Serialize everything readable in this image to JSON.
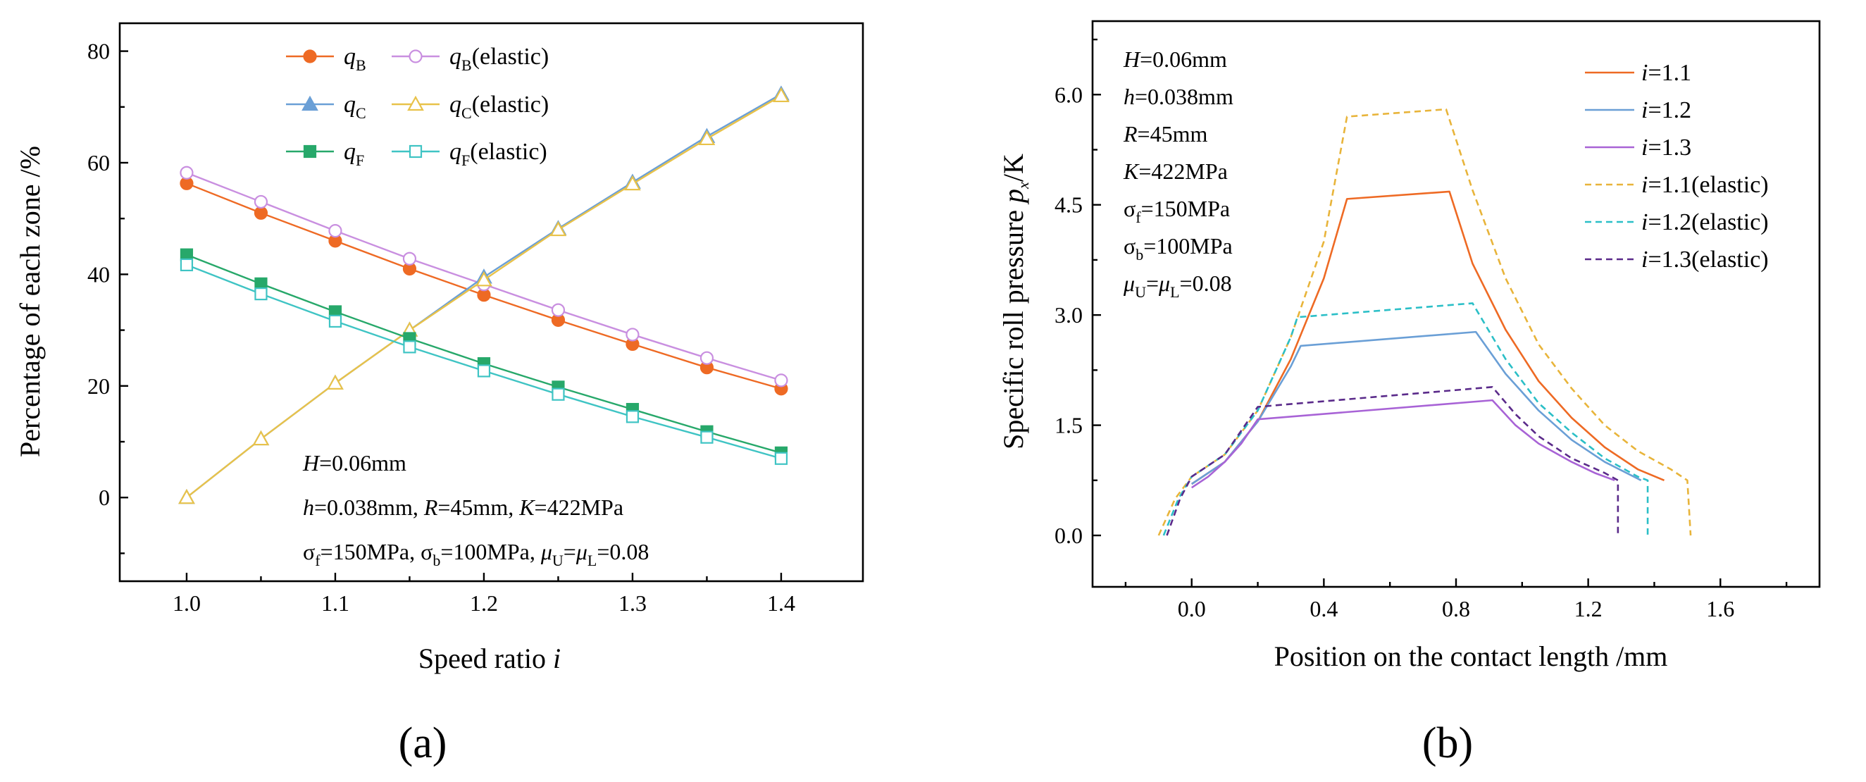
{
  "chart_data": [
    {
      "id": "a",
      "type": "line",
      "panel_label": "(a)",
      "xlabel": "Speed ratio",
      "xlabel_var": "i",
      "ylabel": "Percentage of each zone /%",
      "xlim": [
        0.955,
        1.455
      ],
      "ylim": [
        -15,
        85
      ],
      "xticks": [
        1.0,
        1.1,
        1.2,
        1.3,
        1.4
      ],
      "xtick_labels": [
        "1.0",
        "1.1",
        "1.2",
        "1.3",
        "1.4"
      ],
      "yticks": [
        0,
        20,
        40,
        60,
        80
      ],
      "ytick_labels": [
        "0",
        "20",
        "40",
        "60",
        "80"
      ],
      "x": [
        1.0,
        1.05,
        1.1,
        1.15,
        1.2,
        1.25,
        1.3,
        1.35,
        1.4
      ],
      "series": [
        {
          "name": "q_B",
          "label_main": "q",
          "label_sub": "B",
          "label_suffix": "",
          "color": "#EE6A24",
          "marker": "circle",
          "filled": true,
          "values": [
            56.3,
            51.0,
            46.0,
            41.0,
            36.3,
            31.8,
            27.5,
            23.3,
            19.5
          ]
        },
        {
          "name": "q_B(elastic)",
          "label_main": "q",
          "label_sub": "B",
          "label_suffix": "(elastic)",
          "color": "#C98FE0",
          "marker": "circle",
          "filled": false,
          "values": [
            58.2,
            53.0,
            47.8,
            42.8,
            38.2,
            33.6,
            29.2,
            25.0,
            21.0
          ]
        },
        {
          "name": "q_C",
          "label_main": "q",
          "label_sub": "C",
          "label_suffix": "",
          "color": "#6A9FD6",
          "marker": "triangle",
          "filled": true,
          "values": [
            0.0,
            10.5,
            20.5,
            30.0,
            39.5,
            48.2,
            56.5,
            64.7,
            72.3
          ]
        },
        {
          "name": "q_C(elastic)",
          "label_main": "q",
          "label_sub": "C",
          "label_suffix": "(elastic)",
          "color": "#E8C24A",
          "marker": "triangle",
          "filled": false,
          "values": [
            0.0,
            10.5,
            20.5,
            30.0,
            39.0,
            48.0,
            56.2,
            64.3,
            72.0
          ]
        },
        {
          "name": "q_F",
          "label_main": "q",
          "label_sub": "F",
          "label_suffix": "",
          "color": "#27A86A",
          "marker": "square",
          "filled": true,
          "values": [
            43.5,
            38.3,
            33.3,
            28.5,
            24.0,
            19.8,
            15.8,
            11.8,
            8.0
          ]
        },
        {
          "name": "q_F(elastic)",
          "label_main": "q",
          "label_sub": "F",
          "label_suffix": "(elastic)",
          "color": "#3FC4C4",
          "marker": "square",
          "filled": false,
          "values": [
            41.7,
            36.5,
            31.6,
            27.0,
            22.7,
            18.5,
            14.5,
            10.8,
            7.0
          ]
        }
      ],
      "annotations": [
        {
          "parts": [
            {
              "t": "H",
              "s": "it"
            },
            {
              "t": "=0.06mm",
              "s": ""
            }
          ]
        },
        {
          "parts": [
            {
              "t": "h",
              "s": "it"
            },
            {
              "t": "=0.038mm, ",
              "s": ""
            },
            {
              "t": "R",
              "s": "it"
            },
            {
              "t": "=45mm, ",
              "s": ""
            },
            {
              "t": "K",
              "s": "it"
            },
            {
              "t": "=422MPa",
              "s": ""
            }
          ]
        },
        {
          "parts": [
            {
              "t": "σ",
              "s": ""
            },
            {
              "t": "f",
              "s": "sub"
            },
            {
              "t": "=150MPa, ",
              "s": ""
            },
            {
              "t": "σ",
              "s": ""
            },
            {
              "t": "b",
              "s": "sub"
            },
            {
              "t": "=100MPa, ",
              "s": ""
            },
            {
              "t": "μ",
              "s": "it"
            },
            {
              "t": "U",
              "s": "sub"
            },
            {
              "t": "=",
              "s": ""
            },
            {
              "t": "μ",
              "s": "it"
            },
            {
              "t": "L",
              "s": "sub"
            },
            {
              "t": "=0.08",
              "s": ""
            }
          ]
        }
      ]
    },
    {
      "id": "b",
      "type": "line",
      "panel_label": "(b)",
      "xlabel": "Position on the contact length /mm",
      "ylabel": "Specific roll pressure",
      "ylabel_suffix": "/K",
      "ylabel_var": "p",
      "ylabel_var_sub": "x",
      "xlim": [
        -0.3,
        1.9
      ],
      "ylim": [
        -0.7,
        7.0
      ],
      "xticks": [
        0.0,
        0.4,
        0.8,
        1.2,
        1.6
      ],
      "xtick_labels": [
        "0.0",
        "0.4",
        "0.8",
        "1.2",
        "1.6"
      ],
      "yticks": [
        0.0,
        1.5,
        3.0,
        4.5,
        6.0
      ],
      "ytick_labels": [
        "0.0",
        "1.5",
        "3.0",
        "4.5",
        "6.0"
      ],
      "series": [
        {
          "name": "i=1.1",
          "label_var": "i",
          "label_rest": "=1.1",
          "color": "#EE6A24",
          "dashed": false,
          "x": [
            0.0,
            0.1,
            0.2,
            0.3,
            0.4,
            0.47,
            0.78,
            0.85,
            0.95,
            1.05,
            1.15,
            1.25,
            1.35,
            1.43
          ],
          "y": [
            0.7,
            1.0,
            1.55,
            2.4,
            3.5,
            4.58,
            4.68,
            3.7,
            2.8,
            2.1,
            1.6,
            1.2,
            0.9,
            0.75
          ]
        },
        {
          "name": "i=1.2",
          "label_var": "i",
          "label_rest": "=1.2",
          "color": "#6A9FD6",
          "dashed": false,
          "x": [
            0.0,
            0.1,
            0.2,
            0.3,
            0.33,
            0.86,
            0.95,
            1.05,
            1.15,
            1.25,
            1.36
          ],
          "y": [
            0.7,
            1.0,
            1.55,
            2.3,
            2.58,
            2.77,
            2.2,
            1.7,
            1.3,
            1.0,
            0.75
          ]
        },
        {
          "name": "i=1.3",
          "label_var": "i",
          "label_rest": "=1.3",
          "color": "#A863D6",
          "dashed": false,
          "x": [
            0.0,
            0.05,
            0.1,
            0.15,
            0.2,
            0.91,
            0.98,
            1.05,
            1.15,
            1.22,
            1.28
          ],
          "y": [
            0.65,
            0.8,
            1.0,
            1.25,
            1.58,
            1.84,
            1.5,
            1.25,
            1.0,
            0.85,
            0.75
          ]
        },
        {
          "name": "i=1.1(elastic)",
          "label_var": "i",
          "label_rest": "=1.1(elastic)",
          "color": "#E8B43A",
          "dashed": true,
          "x": [
            -0.1,
            -0.05,
            0.0,
            0.1,
            0.2,
            0.3,
            0.4,
            0.47,
            0.77,
            0.85,
            0.95,
            1.05,
            1.15,
            1.25,
            1.35,
            1.45,
            1.5,
            1.51
          ],
          "y": [
            0.0,
            0.5,
            0.8,
            1.1,
            1.7,
            2.7,
            4.0,
            5.7,
            5.8,
            4.7,
            3.5,
            2.6,
            2.0,
            1.5,
            1.15,
            0.9,
            0.75,
            0.0
          ]
        },
        {
          "name": "i=1.2(elastic)",
          "label_var": "i",
          "label_rest": "=1.2(elastic)",
          "color": "#2BBFC7",
          "dashed": true,
          "x": [
            -0.085,
            -0.04,
            0.0,
            0.1,
            0.2,
            0.3,
            0.32,
            0.85,
            0.95,
            1.05,
            1.15,
            1.25,
            1.35,
            1.38,
            1.38
          ],
          "y": [
            0.0,
            0.5,
            0.8,
            1.1,
            1.7,
            2.7,
            2.97,
            3.16,
            2.4,
            1.8,
            1.4,
            1.05,
            0.8,
            0.75,
            0.0
          ]
        },
        {
          "name": "i=1.3(elastic)",
          "label_var": "i",
          "label_rest": "=1.3(elastic)",
          "color": "#5A2A8A",
          "dashed": true,
          "x": [
            -0.075,
            -0.035,
            0.0,
            0.1,
            0.2,
            0.91,
            0.98,
            1.05,
            1.15,
            1.25,
            1.29,
            1.29
          ],
          "y": [
            0.0,
            0.5,
            0.8,
            1.1,
            1.75,
            2.02,
            1.65,
            1.35,
            1.05,
            0.85,
            0.75,
            0.0
          ]
        }
      ],
      "annotations": [
        {
          "parts": [
            {
              "t": "H",
              "s": "it"
            },
            {
              "t": "=0.06mm",
              "s": ""
            }
          ]
        },
        {
          "parts": [
            {
              "t": "h",
              "s": "it"
            },
            {
              "t": "=0.038mm",
              "s": ""
            }
          ]
        },
        {
          "parts": [
            {
              "t": "R",
              "s": "it"
            },
            {
              "t": "=45mm",
              "s": ""
            }
          ]
        },
        {
          "parts": [
            {
              "t": "K",
              "s": "it"
            },
            {
              "t": "=422MPa",
              "s": ""
            }
          ]
        },
        {
          "parts": [
            {
              "t": "σ",
              "s": ""
            },
            {
              "t": "f",
              "s": "sub"
            },
            {
              "t": "=150MPa",
              "s": ""
            }
          ]
        },
        {
          "parts": [
            {
              "t": "σ",
              "s": ""
            },
            {
              "t": "b",
              "s": "sub"
            },
            {
              "t": "=100MPa",
              "s": ""
            }
          ]
        },
        {
          "parts": [
            {
              "t": "μ",
              "s": "it"
            },
            {
              "t": "U",
              "s": "sub"
            },
            {
              "t": "=",
              "s": ""
            },
            {
              "t": "μ",
              "s": "it"
            },
            {
              "t": "L",
              "s": "sub"
            },
            {
              "t": "=0.08",
              "s": ""
            }
          ]
        }
      ]
    }
  ]
}
